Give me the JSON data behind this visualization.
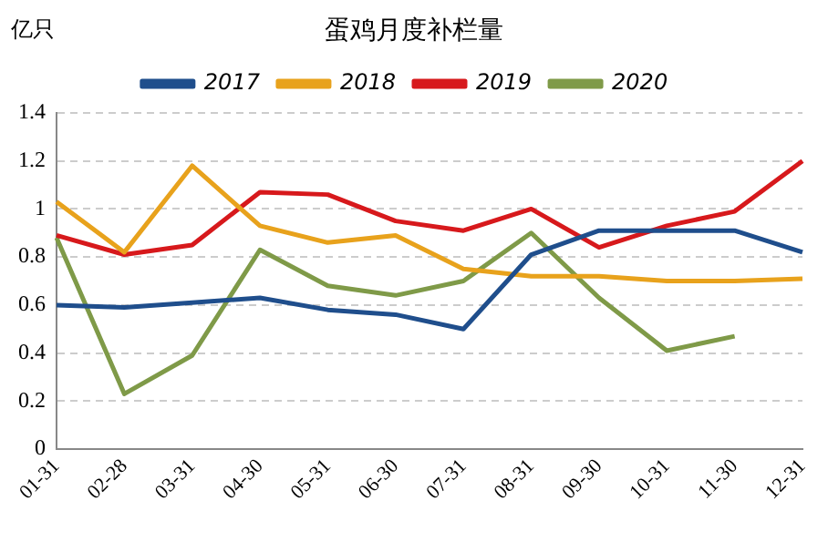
{
  "chart_data": {
    "type": "line",
    "title": "蛋鸡月度补栏量",
    "ylabel": "亿只",
    "categories": [
      "01-31",
      "02-28",
      "03-31",
      "04-30",
      "05-31",
      "06-30",
      "07-31",
      "08-31",
      "09-30",
      "10-31",
      "11-30",
      "12-31"
    ],
    "series": [
      {
        "name": "2017",
        "color": "#1f4e8c",
        "values": [
          0.6,
          0.59,
          0.61,
          0.63,
          0.58,
          0.56,
          0.5,
          0.81,
          0.91,
          0.91,
          0.91,
          0.82
        ]
      },
      {
        "name": "2018",
        "color": "#e8a21c",
        "values": [
          1.03,
          0.82,
          1.18,
          0.93,
          0.86,
          0.89,
          0.75,
          0.72,
          0.72,
          0.7,
          0.7,
          0.71
        ]
      },
      {
        "name": "2019",
        "color": "#d7191c",
        "values": [
          0.89,
          0.81,
          0.85,
          1.07,
          1.06,
          0.95,
          0.91,
          1.0,
          0.84,
          0.93,
          0.99,
          1.2
        ]
      },
      {
        "name": "2020",
        "color": "#7f9a48",
        "values": [
          0.88,
          0.23,
          0.39,
          0.83,
          0.68,
          0.64,
          0.7,
          0.9,
          0.63,
          0.41,
          0.47,
          null
        ]
      }
    ],
    "ylim": [
      0,
      1.4
    ],
    "yticks": [
      0,
      0.2,
      0.4,
      0.6,
      0.8,
      1,
      1.2,
      1.4
    ],
    "grid": "y",
    "legend": "top",
    "marker": "none",
    "line_style": "solid"
  }
}
